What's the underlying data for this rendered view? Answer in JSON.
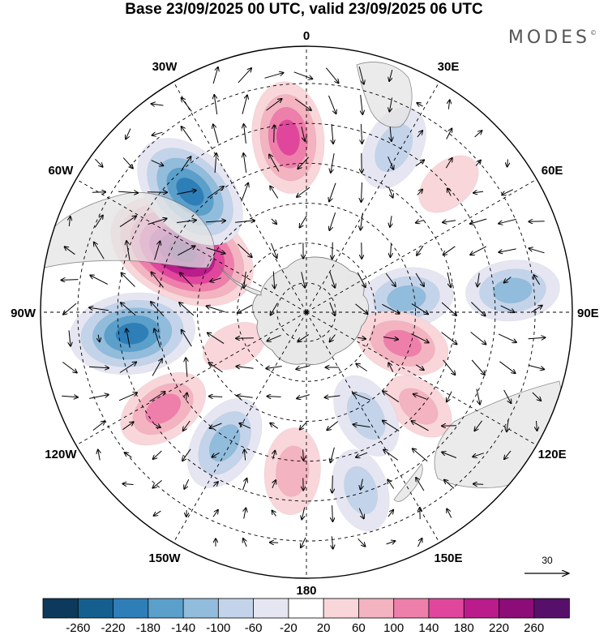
{
  "title": "Base 23/09/2025 00 UTC, valid 23/09/2025 06 UTC",
  "brand": "MODES",
  "brand_mark": "©",
  "longitude_labels": [
    {
      "text": "0",
      "lon": 0
    },
    {
      "text": "30E",
      "lon": 30
    },
    {
      "text": "60E",
      "lon": 60
    },
    {
      "text": "90E",
      "lon": 90
    },
    {
      "text": "120E",
      "lon": 120
    },
    {
      "text": "150E",
      "lon": 150
    },
    {
      "text": "180",
      "lon": 180
    },
    {
      "text": "150W",
      "lon": -150
    },
    {
      "text": "120W",
      "lon": -120
    },
    {
      "text": "90W",
      "lon": -90
    },
    {
      "text": "60W",
      "lon": -60
    },
    {
      "text": "30W",
      "lon": -30
    }
  ],
  "reference_vector": {
    "label": "30"
  },
  "colorbar": {
    "levels": [
      "-260",
      "-220",
      "-180",
      "-140",
      "-100",
      "-60",
      "-20",
      "20",
      "60",
      "100",
      "140",
      "180",
      "220",
      "260"
    ],
    "colors": [
      "#0d3a5c",
      "#155f8f",
      "#2e7fb8",
      "#5b9fcb",
      "#92bcdc",
      "#c3d4ea",
      "#e5e6f2",
      "#ffffff",
      "#f9d6da",
      "#f4b3c0",
      "#ee7fab",
      "#e0479c",
      "#bb1c8b",
      "#8c0c78",
      "#561069"
    ]
  },
  "anomalies": [
    {
      "lon": -64,
      "r": 0.52,
      "v": 270
    },
    {
      "lon": -44,
      "r": 0.63,
      "v": -200
    },
    {
      "lon": -6,
      "r": 0.66,
      "v": 160
    },
    {
      "lon": 28,
      "r": 0.7,
      "v": -90
    },
    {
      "lon": 48,
      "r": 0.72,
      "v": 40
    },
    {
      "lon": 82,
      "r": 0.38,
      "v": -110
    },
    {
      "lon": 84,
      "r": 0.78,
      "v": -110
    },
    {
      "lon": 108,
      "r": 0.38,
      "v": 110
    },
    {
      "lon": 130,
      "r": 0.55,
      "v": 60
    },
    {
      "lon": 150,
      "r": 0.45,
      "v": -90
    },
    {
      "lon": 163,
      "r": 0.7,
      "v": -80
    },
    {
      "lon": -175,
      "r": 0.6,
      "v": 90
    },
    {
      "lon": -148,
      "r": 0.58,
      "v": -120
    },
    {
      "lon": -124,
      "r": 0.65,
      "v": 110
    },
    {
      "lon": -97,
      "r": 0.66,
      "v": -200
    },
    {
      "lon": -115,
      "r": 0.3,
      "v": 30
    }
  ]
}
